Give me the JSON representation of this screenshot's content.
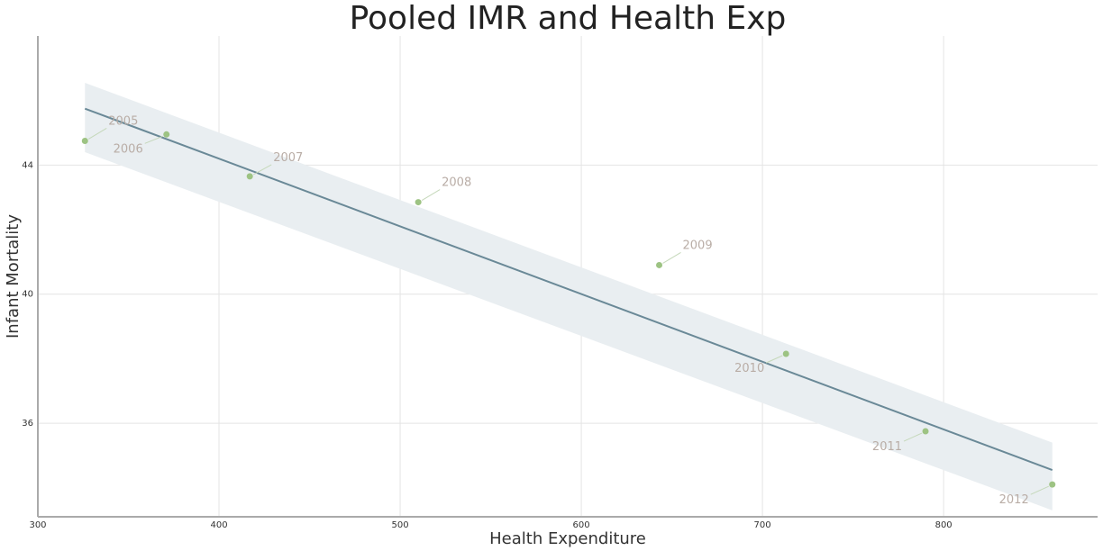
{
  "chart_data": {
    "type": "scatter",
    "title": "Pooled IMR and Health Exp",
    "xlabel": "Health Expenditure",
    "ylabel": "Infant Mortality",
    "xlim": [
      300,
      885
    ],
    "ylim": [
      33.1,
      48.0
    ],
    "x_ticks": [
      300,
      400,
      500,
      600,
      700,
      800
    ],
    "y_ticks": [
      36,
      40,
      44
    ],
    "grid": true,
    "legend": "none",
    "points": [
      {
        "label": "2005",
        "x": 326,
        "y": 44.75
      },
      {
        "label": "2006",
        "x": 371,
        "y": 44.95
      },
      {
        "label": "2007",
        "x": 417,
        "y": 43.65
      },
      {
        "label": "2008",
        "x": 510,
        "y": 42.85
      },
      {
        "label": "2009",
        "x": 643,
        "y": 40.9
      },
      {
        "label": "2010",
        "x": 713,
        "y": 38.15
      },
      {
        "label": "2011",
        "x": 790,
        "y": 35.75
      },
      {
        "label": "2012",
        "x": 860,
        "y": 34.1
      }
    ],
    "fit_line": {
      "x": [
        326,
        860
      ],
      "y": [
        45.75,
        34.55
      ]
    },
    "confidence_band": {
      "x": [
        326,
        860
      ],
      "upper": [
        46.55,
        35.4
      ],
      "lower": [
        44.4,
        33.3
      ]
    },
    "colors": {
      "points": "#9dc383",
      "fit_line": "#6a8997",
      "band": "#e9eef1",
      "grid": "#e4e4e4",
      "axis": "#aaaaaa",
      "point_label": "#b9ada6",
      "leader_line": "#c5d8ba"
    }
  }
}
